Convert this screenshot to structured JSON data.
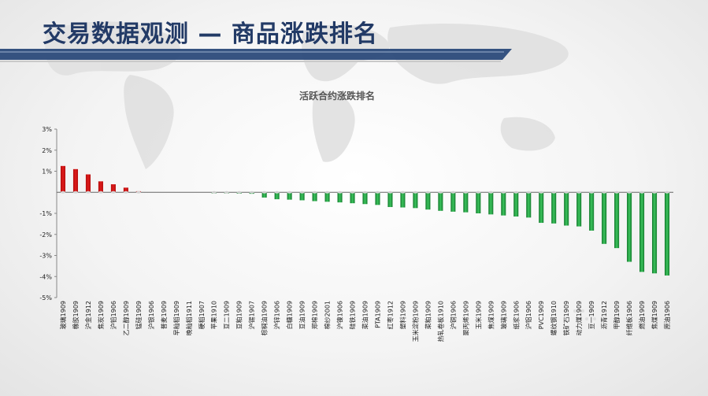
{
  "header": {
    "title": "交易数据观测 — 商品涨跌排名"
  },
  "colors": {
    "up": "#e01b1b",
    "down": "#1f9a3a",
    "title": "#223a66",
    "accent": "#2b4a7a"
  },
  "chart_data": {
    "type": "bar",
    "title": "活跃合约涨跌排名",
    "xlabel": "",
    "ylabel": "",
    "ylim": [
      -5,
      3
    ],
    "yticks": [
      -5,
      -4,
      -3,
      -2,
      -1,
      1,
      2,
      3
    ],
    "ytick_labels": [
      "-5%",
      "-4%",
      "-3%",
      "-2%",
      "-1%",
      "1%",
      "2%",
      "3%"
    ],
    "baseline": 0,
    "grid": false,
    "categories": [
      "玻璃1909",
      "橡胶1909",
      "沪金1912",
      "焦炭1909",
      "沪铅1906",
      "乙二醇1909",
      "锰硅1909",
      "沪银1906",
      "普麦1909",
      "早籼稻1909",
      "晚籼稻1911",
      "粳稻1907",
      "苹果1910",
      "豆二1909",
      "豆粕1909",
      "沪锡1907",
      "棕榈油1909",
      "沪锌1906",
      "白糖1909",
      "豆油1909",
      "郑棉1909",
      "棉纱2001",
      "沪镍1906",
      "硅铁1909",
      "菜油1909",
      "PTA1909",
      "红枣1912",
      "塑料1909",
      "玉米淀粉1909",
      "菜粕1909",
      "热轧卷板1910",
      "沪铜1906",
      "聚丙烯1909",
      "玉米1909",
      "焦煤1909",
      "玻璃1909",
      "纸浆1906",
      "沪铝1906",
      "PVC1909",
      "螺纹钢1910",
      "铁矿石1909",
      "动力煤1909",
      "豆一1909",
      "沥青1912",
      "甲醇1909",
      "纤维板1906",
      "燃油1909",
      "焦煤1909",
      "原油1906"
    ],
    "values": [
      1.25,
      1.1,
      0.85,
      0.52,
      0.38,
      0.22,
      0.05,
      0.0,
      0.0,
      0.0,
      0.0,
      0.0,
      -0.05,
      -0.05,
      -0.06,
      -0.07,
      -0.25,
      -0.33,
      -0.35,
      -0.38,
      -0.42,
      -0.45,
      -0.48,
      -0.52,
      -0.56,
      -0.6,
      -0.7,
      -0.72,
      -0.75,
      -0.82,
      -0.88,
      -0.92,
      -0.95,
      -1.0,
      -1.05,
      -1.1,
      -1.15,
      -1.2,
      -1.45,
      -1.48,
      -1.58,
      -1.62,
      -1.82,
      -2.45,
      -2.65,
      -3.3,
      -3.78,
      -3.85,
      -3.95
    ]
  }
}
